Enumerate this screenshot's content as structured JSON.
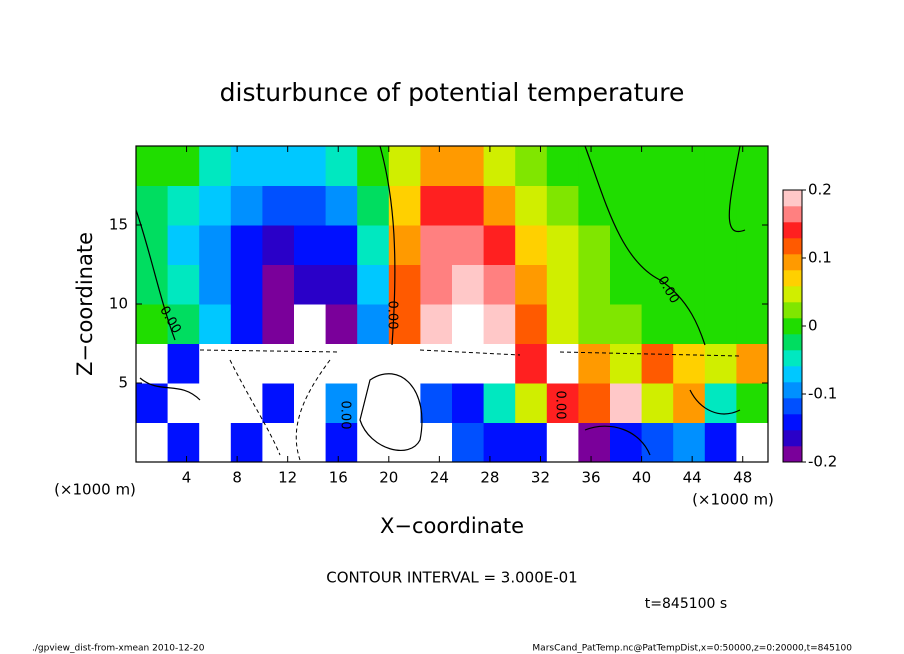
{
  "chart_data": {
    "type": "heatmap",
    "title": "disturbunce of potential temperature",
    "xlabel": "X−coordinate",
    "ylabel": "Z−coordinate",
    "x_unit": "(×1000 m)",
    "x": [
      1.25,
      3.75,
      6.25,
      8.75,
      11.25,
      13.75,
      16.25,
      18.75,
      21.25,
      23.75,
      26.25,
      28.75,
      31.25,
      33.75,
      36.25,
      38.75,
      41.25,
      43.75,
      46.25,
      48.75
    ],
    "y": [
      1.25,
      3.75,
      6.25,
      8.75,
      11.25,
      13.75,
      16.25,
      18.75
    ],
    "z": [
      [
        0.3,
        -0.15,
        0.3,
        -0.15,
        0.3,
        -0.3,
        -0.15,
        0.3,
        0.3,
        0.3,
        -0.12,
        -0.15,
        -0.15,
        0.3,
        -0.18,
        -0.15,
        -0.12,
        -0.1,
        -0.15,
        0.3
      ],
      [
        -0.15,
        -0.3,
        0.3,
        0.3,
        -0.15,
        -0.3,
        -0.1,
        0.3,
        0.3,
        -0.12,
        -0.15,
        -0.05,
        0.05,
        0.15,
        0.12,
        0.18,
        0.05,
        0.1,
        -0.05,
        0
      ],
      [
        0.3,
        -0.15,
        0.3,
        0.3,
        0.3,
        -0.3,
        0.3,
        0.3,
        0.3,
        0.3,
        0.3,
        0.3,
        0.15,
        0.3,
        0.1,
        0.05,
        0.12,
        0.08,
        0.05,
        0.1
      ],
      [
        0.01,
        -0.03,
        -0.08,
        -0.13,
        -0.18,
        -0.22,
        -0.2,
        -0.1,
        0.12,
        0.18,
        0.22,
        0.2,
        0.12,
        0.05,
        0.03,
        0.02,
        0.01,
        0.01,
        0.01,
        0.01
      ],
      [
        -0.02,
        -0.05,
        -0.1,
        -0.15,
        -0.18,
        -0.17,
        -0.16,
        -0.08,
        0.12,
        0.17,
        0.19,
        0.17,
        0.1,
        0.05,
        0.03,
        0.01,
        0,
        0,
        0,
        0
      ],
      [
        -0.03,
        -0.06,
        -0.1,
        -0.14,
        -0.16,
        -0.15,
        -0.14,
        -0.05,
        0.1,
        0.16,
        0.17,
        0.13,
        0.08,
        0.05,
        0.03,
        0.01,
        0,
        0,
        0,
        0
      ],
      [
        -0.02,
        -0.05,
        -0.08,
        -0.1,
        -0.12,
        -0.12,
        -0.1,
        -0.03,
        0.08,
        0.15,
        0.14,
        0.1,
        0.05,
        0.02,
        0.01,
        0,
        0,
        0,
        0,
        0.01
      ],
      [
        0,
        0.01,
        -0.05,
        -0.08,
        -0.08,
        -0.06,
        -0.04,
        0,
        0.05,
        0.1,
        0.09,
        0.05,
        0.02,
        0,
        0,
        0,
        0,
        0,
        0,
        0
      ]
    ],
    "xlim": [
      0,
      50
    ],
    "ylim": [
      0,
      20
    ],
    "xticks": [
      4,
      8,
      12,
      16,
      20,
      24,
      28,
      32,
      36,
      40,
      44,
      48
    ],
    "yticks": [
      5,
      10,
      15
    ],
    "clim": [
      -0.2,
      0.2
    ],
    "cticks": [
      -0.2,
      -0.1,
      0,
      0.1,
      0.2
    ],
    "colors": [
      "#7a009a",
      "#2a00c8",
      "#0010ff",
      "#0050ff",
      "#0090ff",
      "#00c8ff",
      "#00e8c0",
      "#00dd60",
      "#20dd00",
      "#80e600",
      "#d0ee00",
      "#ffd000",
      "#ff9a00",
      "#ff5a00",
      "#ff2020",
      "#ff8080",
      "#ffc8c8"
    ],
    "contour_interval": "CONTOUR INTERVAL = 3.000E-01",
    "contour_labels": [
      "0.00",
      "0.00",
      "0.00",
      "0.00",
      "0.00"
    ],
    "time_label": "t=845100 s"
  },
  "footer": {
    "left": "./gpview_dist-from-xmean  2010-12-20",
    "right": "MarsCand_PatTemp.nc@PatTempDist,x=0:50000,z=0:20000,t=845100"
  }
}
